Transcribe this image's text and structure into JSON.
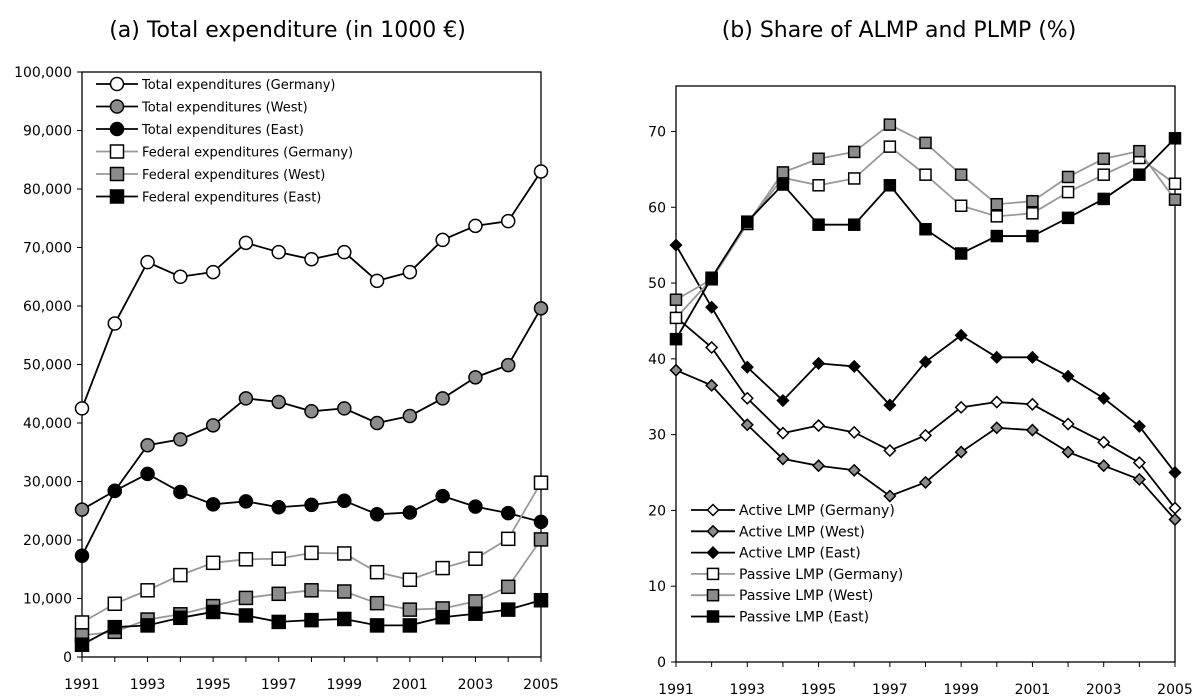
{
  "chart_data": [
    {
      "type": "line",
      "title": "(a)  Total expenditure (in 1000 €)",
      "xlabel": "",
      "ylabel": "",
      "x_tick_labels": [
        "1991",
        "1993",
        "1995",
        "1997",
        "1999",
        "2001",
        "2003",
        "2005"
      ],
      "y_tick_labels": [
        "0",
        "10,000",
        "20,000",
        "30,000",
        "40,000",
        "50,000",
        "60,000",
        "70,000",
        "80,000",
        "90,000",
        "100,000"
      ],
      "ylim": [
        0,
        100000
      ],
      "legend_position": "top-left",
      "x": [
        1991,
        1992,
        1993,
        1994,
        1995,
        1996,
        1997,
        1998,
        1999,
        2000,
        2001,
        2002,
        2003,
        2004,
        2005
      ],
      "series": [
        {
          "name": "Total expenditures (Germany)",
          "marker": "circle",
          "fill": "#ffffff",
          "line_color": "#000000",
          "values": [
            42500,
            57000,
            67500,
            65000,
            65800,
            70800,
            69200,
            68000,
            69200,
            64300,
            65800,
            71300,
            73700,
            74500,
            83000
          ]
        },
        {
          "name": "Total expenditures (West)",
          "marker": "circle",
          "fill": "#8c8c8c",
          "line_color": "#000000",
          "values": [
            25200,
            28400,
            36200,
            37200,
            39600,
            44200,
            43600,
            42000,
            42500,
            40000,
            41200,
            44200,
            47800,
            49900,
            59600
          ]
        },
        {
          "name": "Total expenditures (East)",
          "marker": "circle",
          "fill": "#000000",
          "line_color": "#000000",
          "values": [
            17300,
            28400,
            31300,
            28200,
            26100,
            26600,
            25600,
            26000,
            26700,
            24400,
            24700,
            27500,
            25700,
            24600,
            23100
          ]
        },
        {
          "name": "Federal expenditures (Germany)",
          "marker": "square",
          "fill": "#ffffff",
          "line_color": "#999999",
          "values": [
            5900,
            9100,
            11400,
            14000,
            16100,
            16700,
            16800,
            17800,
            17700,
            14500,
            13200,
            15200,
            16800,
            20200,
            29800
          ]
        },
        {
          "name": "Federal expenditures (West)",
          "marker": "square",
          "fill": "#8c8c8c",
          "line_color": "#999999",
          "values": [
            3700,
            4300,
            6400,
            7300,
            8700,
            10100,
            10800,
            11400,
            11200,
            9200,
            8100,
            8300,
            9500,
            12000,
            20100
          ]
        },
        {
          "name": "Federal expenditures (East)",
          "marker": "square",
          "fill": "#000000",
          "line_color": "#000000",
          "values": [
            2100,
            5100,
            5400,
            6700,
            7700,
            7100,
            6000,
            6300,
            6500,
            5400,
            5400,
            6800,
            7400,
            8100,
            9700
          ]
        }
      ]
    },
    {
      "type": "line",
      "title": "(b) Share of ALMP and PLMP (%)",
      "xlabel": "",
      "ylabel": "",
      "x_tick_labels": [
        "1991",
        "1993",
        "1995",
        "1997",
        "1999",
        "2001",
        "2003",
        "2005"
      ],
      "y_tick_labels": [
        "0",
        "10",
        "20",
        "30",
        "40",
        "50",
        "60",
        "70"
      ],
      "ylim": [
        0,
        76
      ],
      "legend_position": "bottom-left",
      "x": [
        1991,
        1992,
        1993,
        1994,
        1995,
        1996,
        1997,
        1998,
        1999,
        2000,
        2001,
        2002,
        2003,
        2004,
        2005
      ],
      "series": [
        {
          "name": "Active LMP  (Germany)",
          "marker": "diamond",
          "fill": "#ffffff",
          "line_color": "#000000",
          "values": [
            45.5,
            41.5,
            34.8,
            30.2,
            31.2,
            30.3,
            27.9,
            29.9,
            33.6,
            34.3,
            34.0,
            31.4,
            29.0,
            26.3,
            20.3
          ]
        },
        {
          "name": "Active LMP (West)",
          "marker": "diamond",
          "fill": "#8c8c8c",
          "line_color": "#000000",
          "values": [
            38.5,
            36.5,
            31.3,
            26.8,
            25.9,
            25.3,
            21.9,
            23.7,
            27.7,
            30.9,
            30.6,
            27.7,
            25.9,
            24.1,
            18.8
          ]
        },
        {
          "name": "Active LMP (East)",
          "marker": "diamond",
          "fill": "#000000",
          "line_color": "#000000",
          "values": [
            55.0,
            46.8,
            38.9,
            34.5,
            39.4,
            39.0,
            33.9,
            39.6,
            43.1,
            40.2,
            40.2,
            37.7,
            34.8,
            31.1,
            25.0
          ]
        },
        {
          "name": "Passive LMP (Germany)",
          "marker": "square",
          "fill": "#ffffff",
          "line_color": "#999999",
          "values": [
            45.4,
            50.5,
            57.8,
            63.9,
            62.9,
            63.8,
            68.0,
            64.3,
            60.2,
            58.8,
            59.2,
            62.0,
            64.3,
            66.5,
            63.1
          ]
        },
        {
          "name": "Passive LMP (West)",
          "marker": "square",
          "fill": "#8c8c8c",
          "line_color": "#999999",
          "values": [
            47.8,
            50.5,
            57.8,
            64.6,
            66.4,
            67.3,
            70.9,
            68.5,
            64.3,
            60.4,
            60.8,
            64.0,
            66.4,
            67.4,
            61.0
          ]
        },
        {
          "name": "Passive LMP (East)",
          "marker": "square",
          "fill": "#000000",
          "line_color": "#000000",
          "values": [
            42.6,
            50.7,
            58.1,
            63.0,
            57.7,
            57.7,
            62.9,
            57.1,
            53.9,
            56.2,
            56.2,
            58.6,
            61.1,
            64.3,
            69.1
          ]
        }
      ]
    }
  ]
}
